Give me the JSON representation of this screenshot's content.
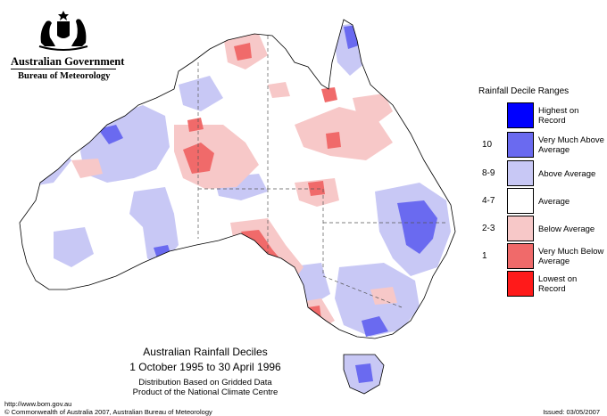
{
  "header": {
    "government": "Australian Government",
    "bureau": "Bureau of Meteorology"
  },
  "legend": {
    "title": "Rainfall Decile Ranges",
    "items": [
      {
        "range": "",
        "label": "Highest on Record",
        "color": "#0000ff"
      },
      {
        "range": "10",
        "label": "Very Much Above Average",
        "color": "#6a6af0"
      },
      {
        "range": "8-9",
        "label": "Above Average",
        "color": "#c8c8f5"
      },
      {
        "range": "4-7",
        "label": "Average",
        "color": "#ffffff"
      },
      {
        "range": "2-3",
        "label": "Below Average",
        "color": "#f7c8c8"
      },
      {
        "range": "1",
        "label": "Very Much Below Average",
        "color": "#f06a6a"
      },
      {
        "range": "",
        "label": "Lowest on Record",
        "color": "#ff1a1a"
      }
    ]
  },
  "map": {
    "title": "Australian Rainfall Deciles",
    "period": "1 October 1995 to 30 April 1996",
    "note_line1": "Distribution Based on Gridded Data",
    "note_line2": "Product of the National Climate Centre"
  },
  "footer": {
    "url": "http://www.bom.gov.au",
    "copyright": "© Commonwealth of Australia 2007, Australian Bureau of Meteorology",
    "issued": "Issued: 03/05/2007"
  }
}
